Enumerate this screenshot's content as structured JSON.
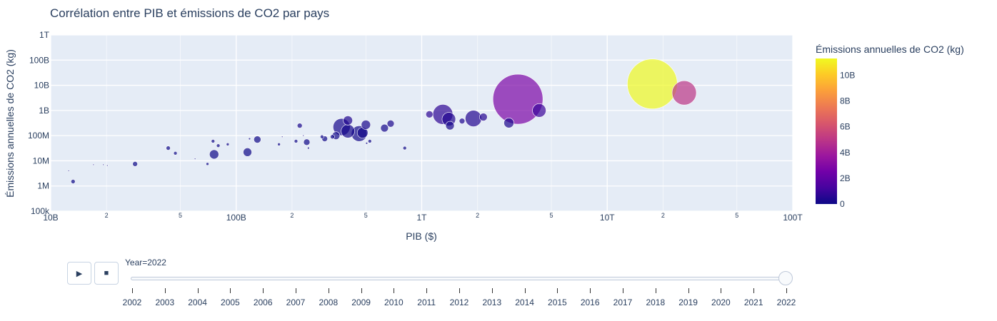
{
  "chart_data": {
    "type": "scatter",
    "title": "Corrélation entre PIB et émissions de CO2 par pays",
    "xlabel": "PIB ($)",
    "ylabel": "Émissions annuelles de CO2 (kg)",
    "xscale": "log",
    "yscale": "log",
    "xlim": [
      10000000000,
      100000000000000
    ],
    "ylim": [
      100000,
      1000000000000
    ],
    "x_tick_labels": [
      "10B",
      "2",
      "5",
      "100B",
      "2",
      "5",
      "1T",
      "2",
      "5",
      "10T",
      "2",
      "5",
      "100T"
    ],
    "y_tick_labels": [
      "100k",
      "1M",
      "10M",
      "100M",
      "1B",
      "10B",
      "100B",
      "1T"
    ],
    "colorbar": {
      "title": "Émissions annuelles de CO2 (kg)",
      "range": [
        0,
        11300000000
      ],
      "tick_labels": [
        "0",
        "2B",
        "4B",
        "6B",
        "8B",
        "10B"
      ],
      "tick_values": [
        0,
        2000000000,
        4000000000,
        6000000000,
        8000000000,
        10000000000
      ],
      "colors": [
        "#0d0887",
        "#46039f",
        "#7201a8",
        "#9c179e",
        "#bd3786",
        "#d8576b",
        "#ed7953",
        "#fb9f3a",
        "#fdca26",
        "#f0f921"
      ]
    },
    "grid": true,
    "background": "#e5ecf6",
    "points": [
      {
        "x": 12500000000,
        "y": 4000000,
        "c": 4000000,
        "s": 2
      },
      {
        "x": 13200000000,
        "y": 1500000,
        "c": 1500000,
        "s": 6
      },
      {
        "x": 17000000000,
        "y": 7000000,
        "c": 7000000,
        "s": 2
      },
      {
        "x": 19200000000,
        "y": 7000000,
        "c": 7000000,
        "s": 2
      },
      {
        "x": 20200000000,
        "y": 6500000,
        "c": 6500000,
        "s": 2
      },
      {
        "x": 28500000000,
        "y": 7500000,
        "c": 7500000,
        "s": 7
      },
      {
        "x": 43000000000,
        "y": 32000000,
        "c": 32000000,
        "s": 6
      },
      {
        "x": 47000000000,
        "y": 20000000,
        "c": 20000000,
        "s": 5
      },
      {
        "x": 60000000000,
        "y": 12000000,
        "c": 12000000,
        "s": 2
      },
      {
        "x": 70000000000,
        "y": 7500000,
        "c": 7500000,
        "s": 4
      },
      {
        "x": 75000000000,
        "y": 60000000,
        "c": 60000000,
        "s": 5
      },
      {
        "x": 76000000000,
        "y": 18000000,
        "c": 18000000,
        "s": 13
      },
      {
        "x": 80000000000,
        "y": 40000000,
        "c": 40000000,
        "s": 5
      },
      {
        "x": 90000000000,
        "y": 45000000,
        "c": 45000000,
        "s": 4
      },
      {
        "x": 115000000000,
        "y": 22000000,
        "c": 22000000,
        "s": 12
      },
      {
        "x": 118000000000,
        "y": 75000000,
        "c": 75000000,
        "s": 3
      },
      {
        "x": 130000000000,
        "y": 70000000,
        "c": 70000000,
        "s": 10
      },
      {
        "x": 170000000000,
        "y": 45000000,
        "c": 45000000,
        "s": 4
      },
      {
        "x": 177000000000,
        "y": 90000000,
        "c": 90000000,
        "s": 2
      },
      {
        "x": 210000000000,
        "y": 60000000,
        "c": 60000000,
        "s": 5
      },
      {
        "x": 220000000000,
        "y": 250000000,
        "c": 250000000,
        "s": 7
      },
      {
        "x": 230000000000,
        "y": 100000000,
        "c": 100000000,
        "s": 2
      },
      {
        "x": 240000000000,
        "y": 55000000,
        "c": 55000000,
        "s": 9
      },
      {
        "x": 245000000000,
        "y": 32000000,
        "c": 32000000,
        "s": 3
      },
      {
        "x": 290000000000,
        "y": 90000000,
        "c": 90000000,
        "s": 5
      },
      {
        "x": 300000000000,
        "y": 75000000,
        "c": 75000000,
        "s": 8
      },
      {
        "x": 330000000000,
        "y": 90000000,
        "c": 90000000,
        "s": 6
      },
      {
        "x": 345000000000,
        "y": 100000000,
        "c": 100000000,
        "s": 11
      },
      {
        "x": 370000000000,
        "y": 220000000,
        "c": 220000000,
        "s": 24
      },
      {
        "x": 400000000000,
        "y": 400000000,
        "c": 400000000,
        "s": 13
      },
      {
        "x": 400000000000,
        "y": 150000000,
        "c": 150000000,
        "s": 19
      },
      {
        "x": 460000000000,
        "y": 120000000,
        "c": 120000000,
        "s": 22
      },
      {
        "x": 480000000000,
        "y": 130000000,
        "c": 130000000,
        "s": 15
      },
      {
        "x": 500000000000,
        "y": 270000000,
        "c": 270000000,
        "s": 13
      },
      {
        "x": 505000000000,
        "y": 50000000,
        "c": 50000000,
        "s": 3
      },
      {
        "x": 525000000000,
        "y": 60000000,
        "c": 60000000,
        "s": 5
      },
      {
        "x": 630000000000,
        "y": 200000000,
        "c": 200000000,
        "s": 11
      },
      {
        "x": 680000000000,
        "y": 300000000,
        "c": 300000000,
        "s": 10
      },
      {
        "x": 810000000000,
        "y": 32000000,
        "c": 32000000,
        "s": 5
      },
      {
        "x": 1100000000000,
        "y": 700000000,
        "c": 700000000,
        "s": 10
      },
      {
        "x": 1300000000000,
        "y": 700000000,
        "c": 700000000,
        "s": 28
      },
      {
        "x": 1400000000000,
        "y": 450000000,
        "c": 450000000,
        "s": 19
      },
      {
        "x": 1420000000000,
        "y": 250000000,
        "c": 250000000,
        "s": 12
      },
      {
        "x": 1650000000000,
        "y": 380000000,
        "c": 380000000,
        "s": 8
      },
      {
        "x": 1900000000000,
        "y": 480000000,
        "c": 480000000,
        "s": 23
      },
      {
        "x": 2150000000000,
        "y": 550000000,
        "c": 550000000,
        "s": 11
      },
      {
        "x": 2950000000000,
        "y": 320000000,
        "c": 320000000,
        "s": 14
      },
      {
        "x": 3300000000000,
        "y": 2800000000,
        "c": 2800000000,
        "s": 70
      },
      {
        "x": 4300000000000,
        "y": 1000000000,
        "c": 1000000000,
        "s": 19
      },
      {
        "x": 17500000000000,
        "y": 11300000000,
        "c": 11300000000,
        "s": 70
      },
      {
        "x": 26000000000000,
        "y": 5000000000,
        "c": 5000000000,
        "s": 34
      }
    ]
  },
  "animation": {
    "play_icon": "▶",
    "stop_icon": "■",
    "current_label": "Year=2022",
    "current_year": "2022",
    "years": [
      "2002",
      "2003",
      "2004",
      "2005",
      "2006",
      "2007",
      "2008",
      "2009",
      "2010",
      "2011",
      "2012",
      "2013",
      "2014",
      "2015",
      "2016",
      "2017",
      "2018",
      "2019",
      "2020",
      "2021",
      "2022"
    ]
  }
}
